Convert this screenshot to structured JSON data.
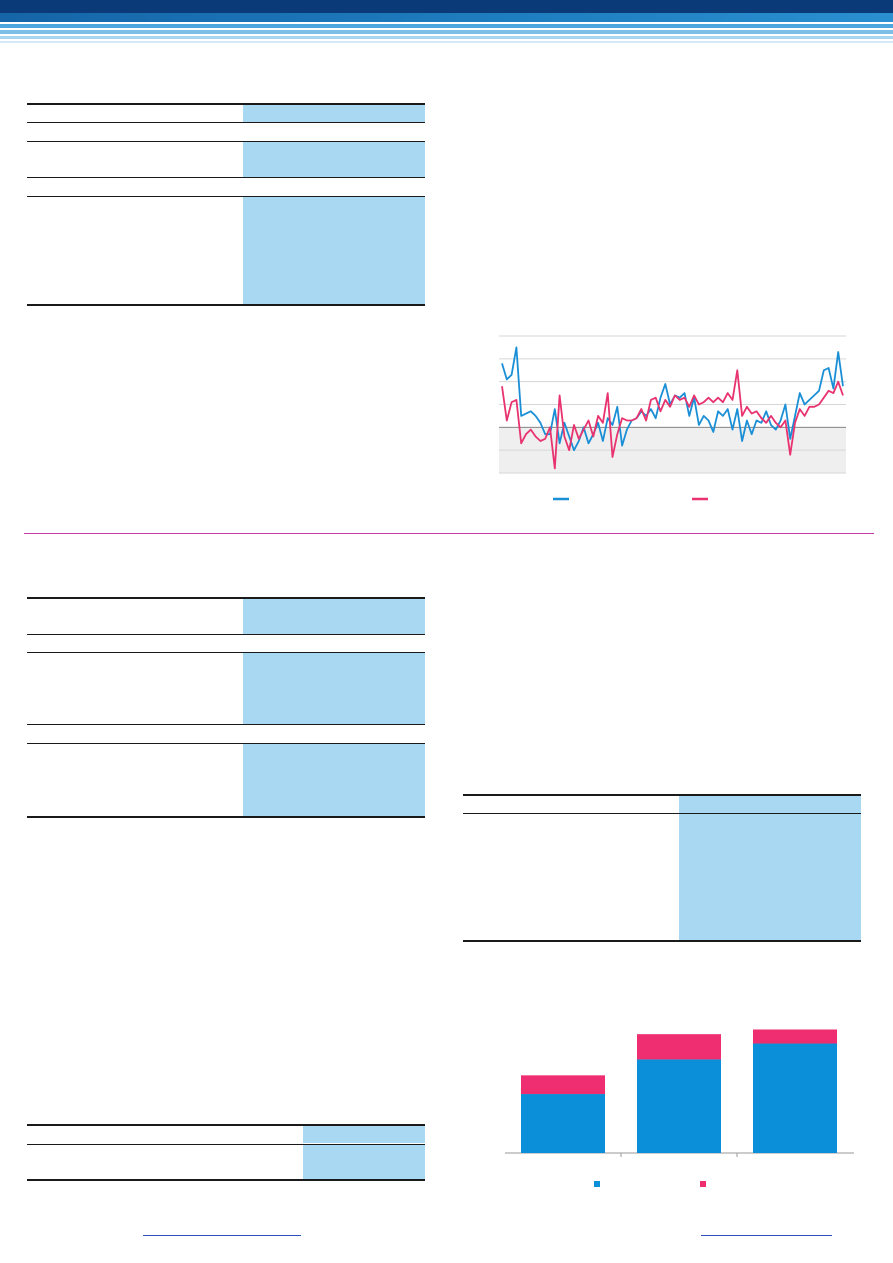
{
  "colors": {
    "header_dark": "#0a3a78",
    "header_mid": "#1f7fc0",
    "header_light": "#9fd2ef",
    "table_shade": "#a9d8f3",
    "series_blue": "#1b8fd6",
    "series_pink": "#e8336f",
    "bar_blue": "#0a8fd8",
    "bar_pink": "#ee2e71",
    "divider": "#c73ba8",
    "link": "#2b4fbf"
  },
  "chart_data": [
    {
      "type": "line",
      "title": "",
      "xlabel": "",
      "ylabel": "",
      "grid": true,
      "legend": "bottom-center",
      "ylim": [
        -2,
        4
      ],
      "series": [
        {
          "name": "",
          "color": "#1b8fd6",
          "values": [
            2.8,
            2.1,
            2.3,
            3.5,
            0.5,
            0.6,
            0.7,
            0.5,
            0.2,
            -0.3,
            -0.3,
            0.8,
            -0.7,
            0.2,
            -0.4,
            -1.0,
            -0.6,
            0.0,
            -0.7,
            -0.3,
            0.2,
            -0.6,
            0.4,
            0.1,
            0.9,
            -0.8,
            -0.1,
            0.3,
            0.4,
            0.7,
            0.5,
            0.8,
            0.4,
            1.3,
            1.9,
            1.0,
            1.4,
            1.3,
            1.5,
            0.5,
            1.3,
            0.1,
            0.5,
            0.3,
            -0.2,
            0.7,
            0.5,
            0.8,
            -0.1,
            0.8,
            -0.6,
            0.3,
            -0.3,
            0.3,
            0.2,
            0.7,
            0.1,
            -0.1,
            0.3,
            1.0,
            -0.5,
            0.5,
            1.5,
            1.0,
            1.2,
            1.4,
            1.6,
            2.5,
            2.6,
            1.7,
            3.3,
            1.8
          ]
        },
        {
          "name": "",
          "color": "#e8336f",
          "values": [
            1.8,
            0.3,
            1.1,
            1.2,
            -0.7,
            -0.3,
            -0.1,
            -0.4,
            -0.6,
            -0.5,
            0.0,
            -1.8,
            1.4,
            -0.4,
            -1.0,
            0.1,
            -0.5,
            -0.1,
            0.3,
            -0.4,
            0.5,
            0.2,
            1.5,
            -1.3,
            -0.3,
            0.4,
            0.3,
            0.3,
            0.4,
            0.8,
            0.3,
            1.2,
            1.3,
            0.7,
            1.2,
            0.9,
            1.4,
            1.2,
            1.3,
            0.9,
            1.4,
            1.0,
            1.1,
            1.3,
            1.1,
            1.3,
            1.1,
            1.5,
            1.2,
            2.5,
            0.5,
            0.9,
            0.6,
            0.7,
            0.4,
            0.2,
            0.5,
            0.2,
            0.0,
            0.3,
            -1.2,
            0.2,
            0.8,
            0.5,
            0.9,
            0.9,
            1.0,
            1.3,
            1.6,
            1.5,
            2.0,
            1.4
          ]
        }
      ]
    },
    {
      "type": "bar",
      "stacked": true,
      "title": "",
      "xlabel": "",
      "ylabel": "",
      "legend": "bottom-center",
      "categories": [
        "",
        "",
        ""
      ],
      "series": [
        {
          "name": "",
          "color": "#0a8fd8",
          "values": [
            63,
            100,
            117
          ]
        },
        {
          "name": "",
          "color": "#ee2e71",
          "values": [
            20,
            27,
            15
          ]
        }
      ]
    }
  ]
}
